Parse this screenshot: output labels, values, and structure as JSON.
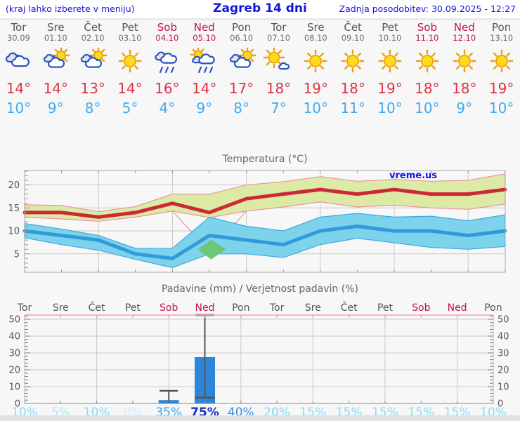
{
  "header": {
    "left_note": "(kraj lahko izberete v meniju)",
    "title": "Zagreb 14 dni",
    "updated": "Zadnja posodobitev: 30.09.2025 - 12:27"
  },
  "colors": {
    "header_blue": "#1414DD",
    "weekend": "#C0134F",
    "day_gray": "#555555",
    "tmax_red": "#DE3341",
    "tmin_blue": "#41AAF0",
    "grid": "#C9C9C9",
    "spine": "#A9A9A9",
    "tick_label": "#555555",
    "chart_title": "#666666",
    "band_yellow": "#DCEAA5",
    "band_yellow_edge": "#E5989B",
    "band_cyan": "#7DD2EC",
    "band_cyan_edge": "#3FA9E0",
    "line_red": "#CC2936",
    "line_blue": "#2F9BD8",
    "overlap_green": "#6CC878",
    "precip_top_spine": "#F2A0AE",
    "bar_blue": "#2E86DB",
    "whisker": "#555555",
    "watermark_blue": "#1111EE"
  },
  "days": [
    {
      "name": "Tor",
      "date": "30.09",
      "weekend": false,
      "icon": "cloudy",
      "tmax": "14°",
      "tmin": "10°"
    },
    {
      "name": "Sre",
      "date": "01.10",
      "weekend": false,
      "icon": "partly-cloudy",
      "tmax": "14°",
      "tmin": "9°"
    },
    {
      "name": "Čet",
      "date": "02.10",
      "weekend": false,
      "icon": "partly-cloudy",
      "tmax": "13°",
      "tmin": "8°"
    },
    {
      "name": "Pet",
      "date": "03.10",
      "weekend": false,
      "icon": "sunny",
      "tmax": "14°",
      "tmin": "5°"
    },
    {
      "name": "Sob",
      "date": "04.10",
      "weekend": true,
      "icon": "rain",
      "tmax": "16°",
      "tmin": "4°"
    },
    {
      "name": "Ned",
      "date": "05.10",
      "weekend": true,
      "icon": "sun-rain",
      "tmax": "14°",
      "tmin": "9°"
    },
    {
      "name": "Pon",
      "date": "06.10",
      "weekend": false,
      "icon": "partly-cloudy",
      "tmax": "17°",
      "tmin": "8°"
    },
    {
      "name": "Tor",
      "date": "07.10",
      "weekend": false,
      "icon": "mostly-sunny",
      "tmax": "18°",
      "tmin": "7°"
    },
    {
      "name": "Sre",
      "date": "08.10",
      "weekend": false,
      "icon": "sunny",
      "tmax": "19°",
      "tmin": "10°"
    },
    {
      "name": "Čet",
      "date": "09.10",
      "weekend": false,
      "icon": "sunny",
      "tmax": "18°",
      "tmin": "11°"
    },
    {
      "name": "Pet",
      "date": "10.10",
      "weekend": false,
      "icon": "sunny",
      "tmax": "19°",
      "tmin": "10°"
    },
    {
      "name": "Sob",
      "date": "11.10",
      "weekend": true,
      "icon": "sunny",
      "tmax": "18°",
      "tmin": "10°"
    },
    {
      "name": "Ned",
      "date": "12.10",
      "weekend": true,
      "icon": "sunny",
      "tmax": "18°",
      "tmin": "9°"
    },
    {
      "name": "Pon",
      "date": "13.10",
      "weekend": false,
      "icon": "sunny",
      "tmax": "19°",
      "tmin": "10°"
    }
  ],
  "chart_data": [
    {
      "type": "line",
      "title": "Temperatura (°C)",
      "watermark": "vreme.us",
      "categories": [
        "Tor 30.09",
        "Sre 01.10",
        "Čet 02.10",
        "Pet 03.10",
        "Sob 04.10",
        "Ned 05.10",
        "Pon 06.10",
        "Tor 07.10",
        "Sre 08.10",
        "Čet 09.10",
        "Pet 10.10",
        "Sob 11.10",
        "Ned 12.10",
        "Pon 13.10"
      ],
      "yticks": [
        5,
        10,
        15,
        20
      ],
      "ylim": [
        1,
        23.2
      ],
      "grid": true,
      "series": [
        {
          "name": "tmax",
          "values": [
            14,
            14,
            13,
            14,
            16,
            14,
            17,
            18,
            19,
            18,
            19,
            18,
            18,
            19
          ]
        },
        {
          "name": "tmin",
          "values": [
            10,
            9,
            8,
            5,
            4,
            9,
            8,
            7,
            10,
            11,
            10,
            10,
            9,
            10
          ]
        },
        {
          "name": "tmax_band_upper",
          "values": [
            15.7,
            15.5,
            14.2,
            15.3,
            18.0,
            18.0,
            20.0,
            20.7,
            21.8,
            20.8,
            21.2,
            20.8,
            21.0,
            22.4
          ]
        },
        {
          "name": "tmax_band_lower",
          "values": [
            13.0,
            12.6,
            12.1,
            13.0,
            14.3,
            12.9,
            14.3,
            15.2,
            16.3,
            15.2,
            15.6,
            15.0,
            14.7,
            15.8
          ]
        },
        {
          "name": "tmin_band_upper",
          "values": [
            11.6,
            10.4,
            9.0,
            6.2,
            6.2,
            13.0,
            11.0,
            10.0,
            13.0,
            13.8,
            13.0,
            13.2,
            12.2,
            13.5
          ]
        },
        {
          "name": "tmin_band_lower",
          "values": [
            8.5,
            7.0,
            5.8,
            3.8,
            2.0,
            5.0,
            5.0,
            4.2,
            7.0,
            8.4,
            7.4,
            6.4,
            6.0,
            6.6
          ]
        }
      ],
      "dip_line": [
        [
          4,
          14.3
        ],
        [
          5,
          5.5
        ],
        [
          6,
          14.3
        ]
      ],
      "overlap_polygon": [
        [
          4.68,
          6.0
        ],
        [
          5.05,
          8.1
        ],
        [
          5.45,
          6.0
        ],
        [
          5.05,
          3.8
        ]
      ]
    },
    {
      "type": "bar",
      "title": "Padavine (mm) / Verjetnost padavin (%)",
      "categories": [
        "Tor",
        "Sre",
        "Čet",
        "Pet",
        "Sob",
        "Ned",
        "Pon",
        "Tor",
        "Sre",
        "Čet",
        "Pet",
        "Sob",
        "Ned",
        "Pon"
      ],
      "weekend": [
        false,
        false,
        false,
        false,
        true,
        true,
        false,
        false,
        false,
        false,
        false,
        true,
        true,
        false
      ],
      "values_mm": [
        0,
        0,
        0,
        0,
        2,
        27.5,
        0,
        0,
        0,
        0,
        0,
        0,
        0,
        0
      ],
      "whiskers": [
        {
          "day": 4,
          "low": 0,
          "high": 7.5
        },
        {
          "day": 5,
          "low": 3.5,
          "high": 52.5
        }
      ],
      "probabilities": [
        "10%",
        "5%",
        "10%",
        "0%",
        "35%",
        "75%",
        "40%",
        "20%",
        "15%",
        "15%",
        "15%",
        "15%",
        "15%",
        "10%"
      ],
      "prob_values": [
        10,
        5,
        10,
        0,
        35,
        75,
        40,
        20,
        15,
        15,
        15,
        15,
        15,
        10
      ],
      "prob_colors": [
        "#89DBF3",
        "#B2E7F6",
        "#89DBF3",
        "#C9F0FA",
        "#46A3E8",
        "#1D2EC2",
        "#3390E3",
        "#7CD7F1",
        "#89DBF3",
        "#89DBF3",
        "#89DBF3",
        "#89DBF3",
        "#89DBF3",
        "#89DBF3"
      ],
      "prob_bold": [
        false,
        false,
        false,
        false,
        false,
        true,
        false,
        false,
        false,
        false,
        false,
        false,
        false,
        false
      ],
      "yticks": [
        0,
        10,
        20,
        30,
        40,
        50
      ],
      "ylim": [
        0,
        52.5
      ],
      "grid": true,
      "legend": "none"
    }
  ]
}
